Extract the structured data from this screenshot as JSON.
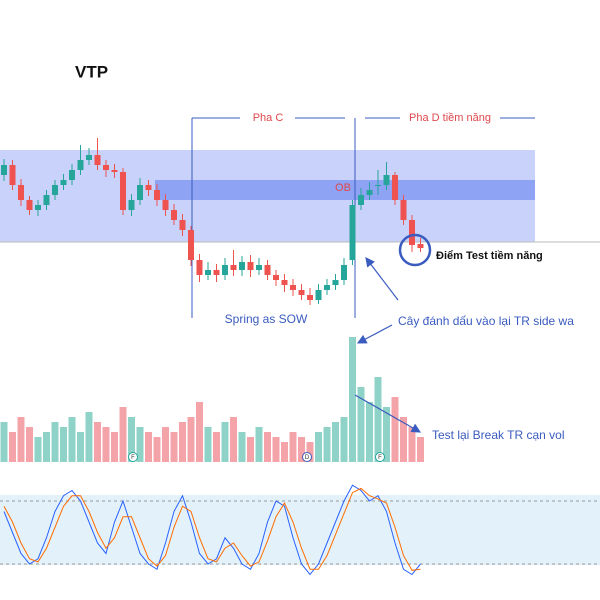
{
  "chart_data": [
    {
      "type": "candlestick",
      "title": "VTP",
      "annotations": [
        "Pha C",
        "Pha D tiềm năng",
        "OB",
        "Điểm Test tiềm năng",
        "Spring as SOW",
        "Cây đánh dấu vào lại TR side wa",
        "Test lại Break TR  cạn vol"
      ],
      "ylim": [
        0,
        180
      ],
      "up_color": "#26a69a",
      "down_color": "#ef5350",
      "open": [
        135,
        145,
        125,
        110,
        100,
        105,
        115,
        125,
        130,
        140,
        150,
        155,
        145,
        140,
        138,
        100,
        110,
        125,
        120,
        110,
        100,
        90,
        80,
        50,
        35,
        40,
        35,
        45,
        40,
        48,
        40,
        45,
        35,
        30,
        25,
        20,
        15,
        10,
        20,
        25,
        30,
        50,
        105,
        115,
        125,
        125,
        135,
        110,
        90,
        66
      ],
      "high": [
        151,
        150,
        131,
        114,
        110,
        120,
        130,
        136,
        146,
        165,
        162,
        172,
        150,
        146,
        142,
        116,
        132,
        130,
        126,
        116,
        106,
        96,
        84,
        56,
        48,
        46,
        52,
        60,
        54,
        55,
        52,
        50,
        40,
        36,
        31,
        26,
        22,
        26,
        31,
        36,
        52,
        110,
        122,
        128,
        140,
        148,
        138,
        115,
        95,
        72
      ],
      "low": [
        129,
        120,
        104,
        95,
        94,
        100,
        110,
        120,
        125,
        135,
        145,
        140,
        133,
        132,
        95,
        94,
        105,
        114,
        104,
        94,
        85,
        74,
        44,
        28,
        30,
        28,
        30,
        34,
        34,
        33,
        35,
        30,
        24,
        18,
        14,
        10,
        5,
        6,
        15,
        20,
        25,
        45,
        100,
        110,
        115,
        120,
        105,
        85,
        58,
        58
      ],
      "close": [
        145,
        125,
        110,
        100,
        105,
        115,
        125,
        130,
        140,
        150,
        155,
        145,
        140,
        138,
        100,
        110,
        125,
        120,
        110,
        100,
        90,
        80,
        50,
        35,
        40,
        35,
        45,
        40,
        48,
        40,
        45,
        35,
        30,
        25,
        20,
        15,
        10,
        20,
        25,
        30,
        45,
        105,
        115,
        120,
        125,
        135,
        110,
        90,
        65,
        62
      ]
    },
    {
      "type": "bar",
      "ylim": [
        0,
        130
      ],
      "up_color": "#8fd3c8",
      "down_color": "#f4a3a8",
      "markers": [
        "F",
        "D",
        "F"
      ],
      "values": [
        40,
        30,
        45,
        35,
        25,
        30,
        40,
        35,
        45,
        30,
        50,
        40,
        35,
        30,
        55,
        45,
        35,
        30,
        25,
        35,
        30,
        40,
        45,
        60,
        35,
        30,
        40,
        45,
        30,
        25,
        35,
        30,
        25,
        20,
        30,
        25,
        20,
        30,
        35,
        40,
        45,
        125,
        75,
        60,
        85,
        55,
        65,
        45,
        35,
        25
      ]
    },
    {
      "type": "line",
      "ylim": [
        0,
        100
      ],
      "band": [
        20,
        80
      ],
      "series": [
        {
          "color": "#2962ff",
          "values": [
            70,
            50,
            30,
            20,
            25,
            45,
            70,
            85,
            90,
            80,
            60,
            40,
            30,
            60,
            80,
            55,
            30,
            20,
            15,
            40,
            70,
            85,
            60,
            30,
            20,
            25,
            45,
            35,
            20,
            15,
            30,
            60,
            80,
            75,
            45,
            20,
            10,
            20,
            40,
            60,
            80,
            95,
            90,
            80,
            85,
            70,
            40,
            15,
            10,
            20
          ]
        },
        {
          "color": "#ff6d00",
          "values": [
            75,
            60,
            40,
            25,
            22,
            35,
            55,
            75,
            85,
            85,
            70,
            50,
            35,
            45,
            65,
            65,
            45,
            25,
            18,
            28,
            55,
            75,
            70,
            45,
            25,
            22,
            35,
            40,
            28,
            18,
            22,
            42,
            65,
            78,
            60,
            35,
            15,
            15,
            28,
            48,
            68,
            88,
            92,
            85,
            82,
            78,
            55,
            28,
            14,
            15
          ]
        }
      ]
    }
  ]
}
